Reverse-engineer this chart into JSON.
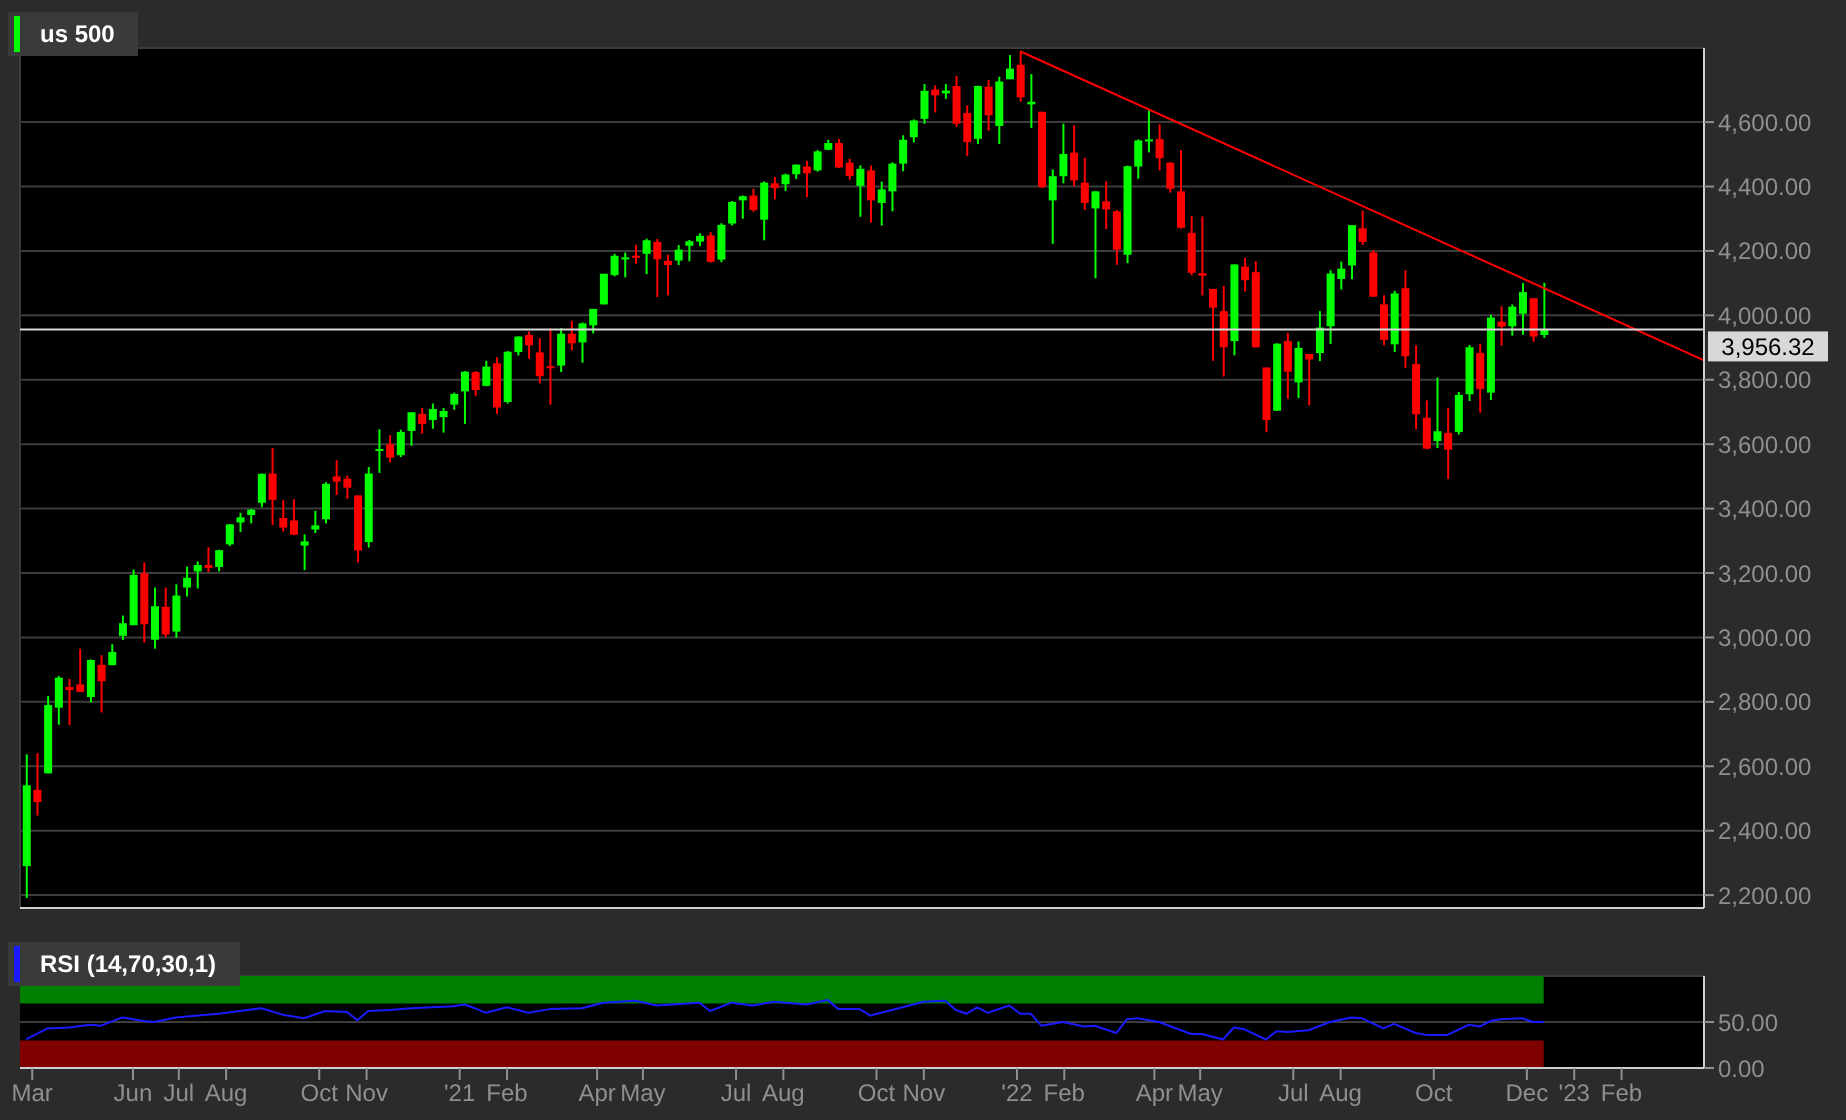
{
  "chart_data": [
    {
      "type": "candlestick",
      "legend": "top left",
      "grid": true,
      "tick_labels": "y",
      "xlim": [
        "2020-03-19",
        "2023-03-27"
      ],
      "xticks": [
        {
          "value": "2021-01-01",
          "label": null
        },
        {
          "value": "2022-01-01",
          "label": null
        },
        {
          "value": "2023-01-01",
          "label": null
        }
      ],
      "ylim": [
        2160,
        4830
      ],
      "yticks": [
        {
          "value": 2200,
          "label": "2,200.00"
        },
        {
          "value": 2400,
          "label": "2,400.00"
        },
        {
          "value": 2600,
          "label": "2,600.00"
        },
        {
          "value": 2800,
          "label": "2,800.00"
        },
        {
          "value": 3000,
          "label": "3,000.00"
        },
        {
          "value": 3200,
          "label": "3,200.00"
        },
        {
          "value": 3400,
          "label": "3,400.00"
        },
        {
          "value": 3600,
          "label": "3,600.00"
        },
        {
          "value": 3800,
          "label": "3,800.00"
        },
        {
          "value": 4000,
          "label": "4,000.00"
        },
        {
          "value": 4200,
          "label": "4,200.00"
        },
        {
          "value": 4400,
          "label": "4,400.00"
        },
        {
          "value": 4600,
          "label": "4,600.00"
        }
      ],
      "ref_lines": [
        {
          "axis": "y",
          "value": 3956.32,
          "label": "3,956.32",
          "color": "#d8d8d8"
        }
      ],
      "series": [
        {
          "name": "us 500",
          "color": "#00ff00",
          "x": [
            "2020-03-23",
            "2020-03-30",
            "2020-04-06",
            "2020-04-13",
            "2020-04-20",
            "2020-04-27",
            "2020-05-04",
            "2020-05-11",
            "2020-05-18",
            "2020-05-25",
            "2020-06-01",
            "2020-06-08",
            "2020-06-15",
            "2020-06-22",
            "2020-06-29",
            "2020-07-06",
            "2020-07-13",
            "2020-07-20",
            "2020-07-27",
            "2020-08-03",
            "2020-08-10",
            "2020-08-17",
            "2020-08-24",
            "2020-08-31",
            "2020-09-07",
            "2020-09-14",
            "2020-09-21",
            "2020-09-28",
            "2020-10-05",
            "2020-10-12",
            "2020-10-19",
            "2020-10-26",
            "2020-11-02",
            "2020-11-09",
            "2020-11-16",
            "2020-11-23",
            "2020-11-30",
            "2020-12-07",
            "2020-12-14",
            "2020-12-21",
            "2020-12-28",
            "2021-01-04",
            "2021-01-11",
            "2021-01-18",
            "2021-01-25",
            "2021-02-01",
            "2021-02-08",
            "2021-02-15",
            "2021-02-22",
            "2021-03-01",
            "2021-03-08",
            "2021-03-15",
            "2021-03-22",
            "2021-03-29",
            "2021-04-05",
            "2021-04-12",
            "2021-04-19",
            "2021-04-26",
            "2021-05-03",
            "2021-05-10",
            "2021-05-17",
            "2021-05-24",
            "2021-05-31",
            "2021-06-07",
            "2021-06-14",
            "2021-06-21",
            "2021-06-28",
            "2021-07-05",
            "2021-07-12",
            "2021-07-19",
            "2021-07-26",
            "2021-08-02",
            "2021-08-09",
            "2021-08-16",
            "2021-08-23",
            "2021-08-30",
            "2021-09-06",
            "2021-09-13",
            "2021-09-20",
            "2021-09-27",
            "2021-10-04",
            "2021-10-11",
            "2021-10-18",
            "2021-10-25",
            "2021-11-01",
            "2021-11-08",
            "2021-11-15",
            "2021-11-22",
            "2021-11-29",
            "2021-12-06",
            "2021-12-13",
            "2021-12-20",
            "2021-12-27",
            "2022-01-03",
            "2022-01-10",
            "2022-01-17",
            "2022-01-24",
            "2022-01-31",
            "2022-02-07",
            "2022-02-14",
            "2022-02-21",
            "2022-02-28",
            "2022-03-07",
            "2022-03-14",
            "2022-03-21",
            "2022-03-28",
            "2022-04-04",
            "2022-04-11",
            "2022-04-18",
            "2022-04-25",
            "2022-05-02",
            "2022-05-09",
            "2022-05-16",
            "2022-05-23",
            "2022-05-30",
            "2022-06-06",
            "2022-06-13",
            "2022-06-20",
            "2022-06-27",
            "2022-07-04",
            "2022-07-11",
            "2022-07-18",
            "2022-07-25",
            "2022-08-01",
            "2022-08-08",
            "2022-08-15",
            "2022-08-22",
            "2022-08-29",
            "2022-09-05",
            "2022-09-12",
            "2022-09-19",
            "2022-09-26",
            "2022-10-03",
            "2022-10-10",
            "2022-10-17",
            "2022-10-24",
            "2022-10-31",
            "2022-11-07",
            "2022-11-14",
            "2022-11-21",
            "2022-11-28",
            "2022-12-05",
            "2022-12-12"
          ],
          "ohlc": [
            [
              2290,
              2637,
              2191,
              2541
            ],
            [
              2527,
              2641,
              2447,
              2489
            ],
            [
              2578,
              2818,
              2578,
              2790
            ],
            [
              2782,
              2880,
              2729,
              2875
            ],
            [
              2846,
              2871,
              2728,
              2837
            ],
            [
              2854,
              2965,
              2830,
              2831
            ],
            [
              2815,
              2932,
              2798,
              2930
            ],
            [
              2915,
              2945,
              2767,
              2864
            ],
            [
              2914,
              2979,
              2914,
              2955
            ],
            [
              3005,
              3068,
              2992,
              3044
            ],
            [
              3038,
              3211,
              3038,
              3194
            ],
            [
              3199,
              3233,
              2984,
              3041
            ],
            [
              2993,
              3155,
              2965,
              3097
            ],
            [
              3095,
              3155,
              3000,
              3009
            ],
            [
              3018,
              3165,
              2999,
              3130
            ],
            [
              3155,
              3220,
              3127,
              3185
            ],
            [
              3205,
              3236,
              3152,
              3225
            ],
            [
              3225,
              3280,
              3203,
              3216
            ],
            [
              3219,
              3272,
              3205,
              3271
            ],
            [
              3289,
              3352,
              3284,
              3351
            ],
            [
              3357,
              3387,
              3327,
              3373
            ],
            [
              3380,
              3399,
              3354,
              3397
            ],
            [
              3418,
              3509,
              3404,
              3508
            ],
            [
              3509,
              3588,
              3349,
              3427
            ],
            [
              3371,
              3426,
              3329,
              3341
            ],
            [
              3363,
              3429,
              3317,
              3319
            ],
            [
              3285,
              3320,
              3209,
              3298
            ],
            [
              3335,
              3393,
              3324,
              3348
            ],
            [
              3367,
              3482,
              3354,
              3477
            ],
            [
              3500,
              3550,
              3442,
              3484
            ],
            [
              3493,
              3502,
              3430,
              3465
            ],
            [
              3441,
              3441,
              3233,
              3270
            ],
            [
              3296,
              3529,
              3279,
              3509
            ],
            [
              3583,
              3646,
              3511,
              3585
            ],
            [
              3600,
              3628,
              3543,
              3558
            ],
            [
              3566,
              3645,
              3560,
              3638
            ],
            [
              3641,
              3699,
              3595,
              3699
            ],
            [
              3694,
              3712,
              3633,
              3663
            ],
            [
              3675,
              3726,
              3648,
              3709
            ],
            [
              3684,
              3712,
              3636,
              3703
            ],
            [
              3723,
              3760,
              3707,
              3756
            ],
            [
              3764,
              3827,
              3663,
              3825
            ],
            [
              3824,
              3827,
              3749,
              3768
            ],
            [
              3781,
              3859,
              3780,
              3841
            ],
            [
              3851,
              3870,
              3694,
              3714
            ],
            [
              3731,
              3889,
              3726,
              3887
            ],
            [
              3886,
              3935,
              3875,
              3934
            ],
            [
              3939,
              3950,
              3865,
              3907
            ],
            [
              3885,
              3929,
              3789,
              3811
            ],
            [
              3842,
              3960,
              3723,
              3841
            ],
            [
              3844,
              3960,
              3824,
              3943
            ],
            [
              3943,
              3983,
              3891,
              3913
            ],
            [
              3916,
              3978,
              3853,
              3975
            ],
            [
              3969,
              4020,
              3944,
              4020
            ],
            [
              4034,
              4129,
              4034,
              4129
            ],
            [
              4125,
              4191,
              4121,
              4185
            ],
            [
              4179,
              4195,
              4118,
              4180
            ],
            [
              4185,
              4219,
              4160,
              4181
            ],
            [
              4191,
              4238,
              4128,
              4233
            ],
            [
              4228,
              4237,
              4057,
              4174
            ],
            [
              4169,
              4188,
              4062,
              4156
            ],
            [
              4170,
              4218,
              4156,
              4204
            ],
            [
              4216,
              4234,
              4168,
              4230
            ],
            [
              4229,
              4255,
              4215,
              4247
            ],
            [
              4248,
              4258,
              4164,
              4166
            ],
            [
              4173,
              4286,
              4165,
              4281
            ],
            [
              4285,
              4355,
              4279,
              4352
            ],
            [
              4357,
              4372,
              4300,
              4370
            ],
            [
              4372,
              4393,
              4321,
              4327
            ],
            [
              4297,
              4416,
              4233,
              4412
            ],
            [
              4410,
              4430,
              4360,
              4395
            ],
            [
              4407,
              4440,
              4386,
              4437
            ],
            [
              4438,
              4468,
              4423,
              4468
            ],
            [
              4462,
              4480,
              4367,
              4441
            ],
            [
              4450,
              4513,
              4446,
              4509
            ],
            [
              4514,
              4545,
              4513,
              4535
            ],
            [
              4535,
              4548,
              4457,
              4459
            ],
            [
              4474,
              4486,
              4421,
              4433
            ],
            [
              4402,
              4466,
              4306,
              4455
            ],
            [
              4450,
              4465,
              4288,
              4357
            ],
            [
              4349,
              4415,
              4279,
              4391
            ],
            [
              4385,
              4475,
              4323,
              4471
            ],
            [
              4471,
              4559,
              4447,
              4545
            ],
            [
              4553,
              4608,
              4537,
              4605
            ],
            [
              4610,
              4718,
              4595,
              4697
            ],
            [
              4701,
              4714,
              4630,
              4683
            ],
            [
              4689,
              4718,
              4672,
              4698
            ],
            [
              4712,
              4743,
              4585,
              4595
            ],
            [
              4628,
              4652,
              4495,
              4538
            ],
            [
              4548,
              4713,
              4532,
              4712
            ],
            [
              4710,
              4731,
              4573,
              4621
            ],
            [
              4588,
              4741,
              4532,
              4726
            ],
            [
              4733,
              4808,
              4733,
              4766
            ],
            [
              4778,
              4819,
              4663,
              4677
            ],
            [
              4655,
              4749,
              4582,
              4663
            ],
            [
              4632,
              4632,
              4395,
              4398
            ],
            [
              4357,
              4453,
              4222,
              4432
            ],
            [
              4432,
              4595,
              4410,
              4501
            ],
            [
              4505,
              4590,
              4401,
              4419
            ],
            [
              4412,
              4489,
              4327,
              4349
            ],
            [
              4332,
              4385,
              4115,
              4385
            ],
            [
              4354,
              4416,
              4268,
              4329
            ],
            [
              4323,
              4327,
              4157,
              4204
            ],
            [
              4188,
              4465,
              4162,
              4463
            ],
            [
              4462,
              4546,
              4424,
              4543
            ],
            [
              4541,
              4637,
              4506,
              4546
            ],
            [
              4547,
              4593,
              4450,
              4488
            ],
            [
              4474,
              4475,
              4381,
              4393
            ],
            [
              4385,
              4513,
              4269,
              4272
            ],
            [
              4256,
              4308,
              4124,
              4132
            ],
            [
              4131,
              4307,
              4062,
              4123
            ],
            [
              4082,
              4082,
              3859,
              4024
            ],
            [
              4013,
              4091,
              3810,
              3901
            ],
            [
              3920,
              4158,
              3876,
              4158
            ],
            [
              4151,
              4178,
              4074,
              4109
            ],
            [
              4134,
              4168,
              3900,
              3901
            ],
            [
              3838,
              3838,
              3637,
              3675
            ],
            [
              3704,
              3913,
              3703,
              3912
            ],
            [
              3920,
              3946,
              3741,
              3825
            ],
            [
              3792,
              3919,
              3743,
              3899
            ],
            [
              3880,
              3880,
              3721,
              3863
            ],
            [
              3883,
              4013,
              3858,
              3962
            ],
            [
              3966,
              4140,
              3911,
              4130
            ],
            [
              4113,
              4167,
              4080,
              4145
            ],
            [
              4155,
              4280,
              4112,
              4280
            ],
            [
              4270,
              4325,
              4218,
              4228
            ],
            [
              4195,
              4203,
              4057,
              4058
            ],
            [
              4034,
              4062,
              3907,
              3924
            ],
            [
              3910,
              4076,
              3886,
              4068
            ],
            [
              4084,
              4140,
              3837,
              3873
            ],
            [
              3849,
              3907,
              3647,
              3693
            ],
            [
              3682,
              3736,
              3584,
              3586
            ],
            [
              3610,
              3807,
              3588,
              3640
            ],
            [
              3635,
              3713,
              3492,
              3583
            ],
            [
              3638,
              3762,
              3630,
              3753
            ],
            [
              3755,
              3908,
              3734,
              3901
            ],
            [
              3883,
              3912,
              3698,
              3771
            ],
            [
              3760,
              4002,
              3737,
              3993
            ],
            [
              3980,
              4028,
              3906,
              3965
            ],
            [
              3966,
              4034,
              3937,
              4027
            ],
            [
              4005,
              4100,
              3940,
              4072
            ],
            [
              4053,
              4053,
              3918,
              3934
            ],
            [
              3939,
              4101,
              3930,
              3956.32
            ]
          ],
          "colors": [
            "#00ff00",
            "#ff0000",
            "#00ff00",
            "#00ff00",
            "#ff0000",
            "#ff0000",
            "#00ff00",
            "#ff0000",
            "#00ff00",
            "#00ff00",
            "#00ff00",
            "#ff0000",
            "#00ff00",
            "#ff0000",
            "#00ff00",
            "#00ff00",
            "#00ff00",
            "#ff0000",
            "#00ff00",
            "#00ff00",
            "#00ff00",
            "#00ff00",
            "#00ff00",
            "#ff0000",
            "#ff0000",
            "#ff0000",
            "#00ff00",
            "#00ff00",
            "#00ff00",
            "#ff0000",
            "#ff0000",
            "#ff0000",
            "#00ff00",
            "#00ff00",
            "#ff0000",
            "#00ff00",
            "#00ff00",
            "#ff0000",
            "#00ff00",
            "#00ff00",
            "#00ff00",
            "#00ff00",
            "#ff0000",
            "#00ff00",
            "#ff0000",
            "#00ff00",
            "#00ff00",
            "#ff0000",
            "#ff0000",
            "#ff0000",
            "#00ff00",
            "#ff0000",
            "#00ff00",
            "#00ff00",
            "#00ff00",
            "#00ff00",
            "#00ff00",
            "#ff0000",
            "#00ff00",
            "#ff0000",
            "#ff0000",
            "#00ff00",
            "#00ff00",
            "#00ff00",
            "#ff0000",
            "#00ff00",
            "#00ff00",
            "#00ff00",
            "#ff0000",
            "#00ff00",
            "#ff0000",
            "#00ff00",
            "#00ff00",
            "#ff0000",
            "#00ff00",
            "#00ff00",
            "#ff0000",
            "#ff0000",
            "#00ff00",
            "#ff0000",
            "#00ff00",
            "#00ff00",
            "#00ff00",
            "#00ff00",
            "#00ff00",
            "#ff0000",
            "#00ff00",
            "#ff0000",
            "#ff0000",
            "#00ff00",
            "#ff0000",
            "#00ff00",
            "#00ff00",
            "#ff0000",
            "#00ff00",
            "#ff0000",
            "#00ff00",
            "#00ff00",
            "#ff0000",
            "#ff0000",
            "#00ff00",
            "#ff0000",
            "#ff0000",
            "#00ff00",
            "#00ff00",
            "#00ff00",
            "#ff0000",
            "#ff0000",
            "#ff0000",
            "#ff0000",
            "#ff0000",
            "#ff0000",
            "#ff0000",
            "#00ff00",
            "#ff0000",
            "#ff0000",
            "#ff0000",
            "#00ff00",
            "#ff0000",
            "#00ff00",
            "#ff0000",
            "#00ff00",
            "#00ff00",
            "#00ff00",
            "#00ff00",
            "#ff0000",
            "#ff0000",
            "#ff0000",
            "#00ff00",
            "#ff0000",
            "#ff0000",
            "#ff0000",
            "#00ff00",
            "#ff0000",
            "#00ff00",
            "#00ff00",
            "#ff0000",
            "#00ff00",
            "#ff0000",
            "#00ff00",
            "#00ff00",
            "#ff0000",
            "#00ff00"
          ]
        },
        {
          "type": "line",
          "color": "#ff0000",
          "x": [
            "2022-01-03",
            "2023-03-27"
          ],
          "values": [
            4820,
            3860
          ]
        }
      ]
    },
    {
      "type": "line",
      "legend": "top left",
      "grid": "y",
      "xlim": [
        "2020-03-19",
        "2023-03-27"
      ],
      "xticks": [
        {
          "value": "2020-03-27",
          "label": "Mar"
        },
        {
          "value": "2020-06-01",
          "label": "Jun"
        },
        {
          "value": "2020-07-01",
          "label": "Jul"
        },
        {
          "value": "2020-08-01",
          "label": "Aug"
        },
        {
          "value": "2020-10-01",
          "label": "Oct"
        },
        {
          "value": "2020-11-01",
          "label": "Nov"
        },
        {
          "value": "2021-01-01",
          "label": "'21"
        },
        {
          "value": "2021-02-01",
          "label": "Feb"
        },
        {
          "value": "2021-04-01",
          "label": "Apr"
        },
        {
          "value": "2021-05-01",
          "label": "May"
        },
        {
          "value": "2021-07-01",
          "label": "Jul"
        },
        {
          "value": "2021-08-01",
          "label": "Aug"
        },
        {
          "value": "2021-10-01",
          "label": "Oct"
        },
        {
          "value": "2021-11-01",
          "label": "Nov"
        },
        {
          "value": "2022-01-01",
          "label": "'22"
        },
        {
          "value": "2022-02-01",
          "label": "Feb"
        },
        {
          "value": "2022-04-01",
          "label": "Apr"
        },
        {
          "value": "2022-05-01",
          "label": "May"
        },
        {
          "value": "2022-07-01",
          "label": "Jul"
        },
        {
          "value": "2022-08-01",
          "label": "Aug"
        },
        {
          "value": "2022-10-01",
          "label": "Oct"
        },
        {
          "value": "2022-12-01",
          "label": "Dec"
        },
        {
          "value": "2023-01-01",
          "label": "'23"
        },
        {
          "value": "2023-02-01",
          "label": "Feb"
        }
      ],
      "ylim": [
        0,
        100
      ],
      "yticks": [
        {
          "value": 0,
          "label": "0.00"
        },
        {
          "value": 50,
          "label": "50.00"
        }
      ],
      "bands": [
        {
          "axis": "y",
          "from": 70,
          "to": 100,
          "color": "#008000"
        },
        {
          "axis": "y",
          "from": 0,
          "to": 30,
          "color": "#800000"
        }
      ],
      "series": [
        {
          "name": "RSI (14,70,30,1)",
          "color": "#1a1aff",
          "x": [
            "2020-03-23",
            "2020-04-06",
            "2020-04-20",
            "2020-05-04",
            "2020-05-11",
            "2020-05-25",
            "2020-06-08",
            "2020-06-15",
            "2020-06-29",
            "2020-07-27",
            "2020-08-10",
            "2020-08-24",
            "2020-09-07",
            "2020-09-21",
            "2020-10-05",
            "2020-10-19",
            "2020-10-26",
            "2020-11-02",
            "2020-11-16",
            "2020-11-30",
            "2020-12-28",
            "2021-01-04",
            "2021-01-11",
            "2021-01-18",
            "2021-02-01",
            "2021-02-15",
            "2021-03-01",
            "2021-03-22",
            "2021-04-05",
            "2021-04-26",
            "2021-05-10",
            "2021-06-07",
            "2021-06-14",
            "2021-06-28",
            "2021-07-12",
            "2021-07-26",
            "2021-08-16",
            "2021-08-30",
            "2021-09-06",
            "2021-09-20",
            "2021-09-27",
            "2021-10-11",
            "2021-11-01",
            "2021-11-15",
            "2021-11-22",
            "2021-11-29",
            "2021-12-06",
            "2021-12-13",
            "2021-12-27",
            "2022-01-03",
            "2022-01-10",
            "2022-01-17",
            "2022-01-31",
            "2022-02-14",
            "2022-02-21",
            "2022-03-07",
            "2022-03-14",
            "2022-03-21",
            "2022-04-04",
            "2022-04-25",
            "2022-05-02",
            "2022-05-16",
            "2022-05-23",
            "2022-05-30",
            "2022-06-13",
            "2022-06-20",
            "2022-06-27",
            "2022-07-11",
            "2022-07-25",
            "2022-08-08",
            "2022-08-15",
            "2022-08-29",
            "2022-09-05",
            "2022-09-19",
            "2022-09-26",
            "2022-10-10",
            "2022-10-24",
            "2022-10-31",
            "2022-11-07",
            "2022-11-14",
            "2022-11-28",
            "2022-12-05",
            "2022-12-12"
          ],
          "values": [
            31,
            43,
            44,
            47,
            46,
            55,
            51,
            50,
            55,
            59,
            62,
            65,
            58,
            54,
            62,
            61,
            52,
            62,
            63,
            65,
            67,
            69,
            65,
            60,
            66,
            60,
            64,
            65,
            71,
            73,
            68,
            71,
            62,
            71,
            68,
            72,
            69,
            74,
            64,
            64,
            57,
            63,
            72,
            73,
            63,
            59,
            66,
            60,
            68,
            59,
            59,
            46,
            50,
            45,
            46,
            38,
            53,
            54,
            50,
            37,
            37,
            31,
            44,
            42,
            31,
            40,
            39,
            41,
            50,
            55,
            54,
            43,
            48,
            38,
            36,
            36,
            47,
            45,
            51,
            53,
            54,
            50,
            50
          ]
        }
      ]
    }
  ]
}
